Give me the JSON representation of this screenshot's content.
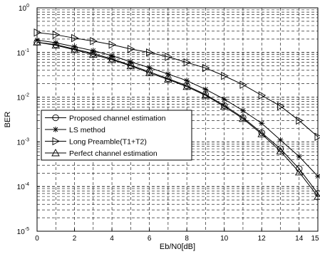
{
  "chart_data": {
    "type": "line",
    "title": "",
    "xlabel": "Eb/N0[dB]",
    "ylabel": "BER",
    "xlim": [
      0,
      15
    ],
    "ylim": [
      1e-05,
      1
    ],
    "yscale": "log",
    "grid": true,
    "legend_position": "middle-left",
    "x_ticks": [
      "0",
      "2",
      "4",
      "6",
      "8",
      "10",
      "12",
      "14",
      "15"
    ],
    "y_ticks": [
      {
        "base": "10",
        "exp": "0"
      },
      {
        "base": "10",
        "exp": "-1"
      },
      {
        "base": "10",
        "exp": "-2"
      },
      {
        "base": "10",
        "exp": "-3"
      },
      {
        "base": "10",
        "exp": "-4"
      },
      {
        "base": "10",
        "exp": "-5"
      }
    ],
    "x": [
      0,
      1,
      2,
      3,
      4,
      5,
      6,
      7,
      8,
      9,
      10,
      11,
      12,
      13,
      14,
      15
    ],
    "series": [
      {
        "name": "Proposed channel estimation",
        "marker": "circle",
        "values": [
          0.17,
          0.15,
          0.12,
          0.095,
          0.072,
          0.052,
          0.037,
          0.026,
          0.018,
          0.0115,
          0.0065,
          0.0035,
          0.0016,
          0.0007,
          0.00025,
          7e-05
        ]
      },
      {
        "name": "LS method",
        "marker": "star",
        "values": [
          0.19,
          0.165,
          0.135,
          0.11,
          0.085,
          0.062,
          0.046,
          0.033,
          0.0235,
          0.015,
          0.009,
          0.005,
          0.0026,
          0.0011,
          0.00047,
          0.00017
        ]
      },
      {
        "name": "Long Preamble(T1+T2)",
        "marker": "triangle-right",
        "values": [
          0.28,
          0.25,
          0.21,
          0.18,
          0.15,
          0.12,
          0.1,
          0.08,
          0.06,
          0.045,
          0.03,
          0.019,
          0.011,
          0.0063,
          0.003,
          0.0013
        ]
      },
      {
        "name": "Perfect channel estimation",
        "marker": "triangle-up",
        "values": [
          0.17,
          0.145,
          0.115,
          0.09,
          0.069,
          0.05,
          0.035,
          0.025,
          0.0172,
          0.011,
          0.0062,
          0.0033,
          0.0015,
          0.00062,
          0.00021,
          6e-05
        ]
      }
    ]
  }
}
